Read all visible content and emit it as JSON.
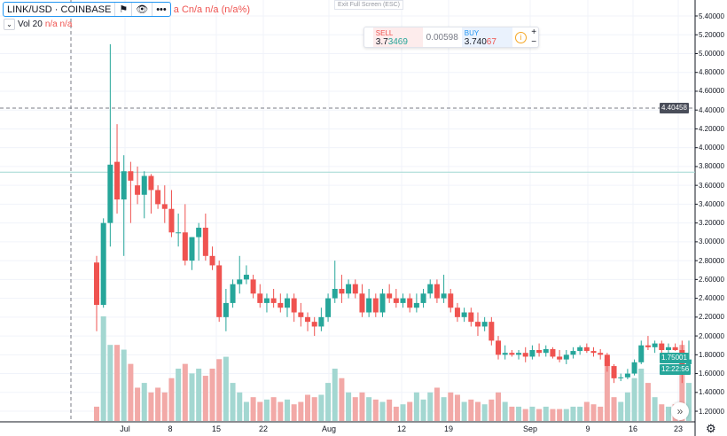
{
  "legend": {
    "symbol": "LINK/USD · COINBASE",
    "ohlc_text": "a  Cn/a  n/a (n/a%)",
    "vol_label": "Vol 20",
    "vol_values": "n/a  n/a"
  },
  "exit_fullscreen": "Exit Full Screen (ESC)",
  "trade": {
    "sell_label": "SELL",
    "sell_main": "3.7",
    "sell_tail": "3469",
    "spread": "0.00598",
    "buy_label": "BUY",
    "buy_main": "3.740",
    "buy_tail": "67",
    "plus": "+",
    "minus": "−",
    "info": "i"
  },
  "price_axis": {
    "ticks": [
      "5.40000",
      "5.20000",
      "5.00000",
      "4.80000",
      "4.60000",
      "4.40000",
      "4.20000",
      "4.00000",
      "3.80000",
      "3.60000",
      "3.40000",
      "3.20000",
      "3.00000",
      "2.80000",
      "2.60000",
      "2.40000",
      "2.20000",
      "2.00000",
      "1.80000",
      "1.60000",
      "1.40000",
      "1.20000"
    ],
    "crosshair_price": "4.40458",
    "current_price": "1.75001",
    "countdown": "12:22:56",
    "bid_line": 3.74
  },
  "time_axis": [
    "Jul",
    "8",
    "15",
    "22",
    "Aug",
    "12",
    "19",
    "Sep",
    "9",
    "16",
    "23"
  ],
  "colors": {
    "up": "#26a69a",
    "down": "#ef5350",
    "up_vol": "#a3d7d1",
    "down_vol": "#f2a9a7",
    "accent": "#2196f3"
  },
  "chart_data": {
    "type": "candlestick",
    "columns": [
      "open",
      "high",
      "low",
      "close",
      "volume"
    ],
    "candles": [
      [
        2.78,
        2.85,
        2.05,
        2.33,
        30
      ],
      [
        2.33,
        3.25,
        2.3,
        3.2,
        220
      ],
      [
        3.2,
        5.1,
        2.95,
        3.82,
        160
      ],
      [
        3.85,
        4.25,
        3.3,
        3.45,
        160
      ],
      [
        3.45,
        3.92,
        2.85,
        3.75,
        150
      ],
      [
        3.75,
        3.85,
        3.2,
        3.65,
        120
      ],
      [
        3.6,
        3.8,
        3.4,
        3.5,
        70
      ],
      [
        3.5,
        3.75,
        3.25,
        3.7,
        80
      ],
      [
        3.7,
        3.72,
        3.3,
        3.55,
        60
      ],
      [
        3.55,
        3.6,
        3.35,
        3.4,
        70
      ],
      [
        3.4,
        3.6,
        3.2,
        3.35,
        60
      ],
      [
        3.35,
        3.55,
        3.05,
        3.1,
        90
      ],
      [
        3.1,
        3.3,
        2.95,
        3.1,
        110
      ],
      [
        3.1,
        3.4,
        2.75,
        2.8,
        120
      ],
      [
        2.8,
        3.05,
        2.7,
        3.05,
        100
      ],
      [
        3.05,
        3.2,
        2.8,
        3.15,
        110
      ],
      [
        3.15,
        3.3,
        2.8,
        2.85,
        95
      ],
      [
        2.85,
        2.95,
        2.7,
        2.75,
        110
      ],
      [
        2.75,
        2.8,
        2.15,
        2.2,
        130
      ],
      [
        2.2,
        2.5,
        2.05,
        2.35,
        135
      ],
      [
        2.35,
        2.6,
        2.3,
        2.55,
        80
      ],
      [
        2.55,
        2.85,
        2.45,
        2.6,
        60
      ],
      [
        2.6,
        2.75,
        2.55,
        2.65,
        40
      ],
      [
        2.6,
        2.65,
        2.4,
        2.45,
        50
      ],
      [
        2.45,
        2.55,
        2.3,
        2.35,
        40
      ],
      [
        2.35,
        2.45,
        2.25,
        2.4,
        45
      ],
      [
        2.4,
        2.5,
        2.3,
        2.35,
        50
      ],
      [
        2.35,
        2.45,
        2.25,
        2.3,
        40
      ],
      [
        2.3,
        2.45,
        2.2,
        2.4,
        45
      ],
      [
        2.4,
        2.45,
        2.15,
        2.25,
        35
      ],
      [
        2.25,
        2.35,
        2.1,
        2.2,
        40
      ],
      [
        2.2,
        2.25,
        2.05,
        2.15,
        55
      ],
      [
        2.15,
        2.2,
        2.0,
        2.1,
        50
      ],
      [
        2.1,
        2.3,
        2.05,
        2.2,
        55
      ],
      [
        2.2,
        2.45,
        2.15,
        2.4,
        80
      ],
      [
        2.4,
        2.8,
        2.35,
        2.5,
        110
      ],
      [
        2.5,
        2.65,
        2.35,
        2.45,
        90
      ],
      [
        2.45,
        2.6,
        2.4,
        2.55,
        60
      ],
      [
        2.55,
        2.6,
        2.4,
        2.45,
        50
      ],
      [
        2.45,
        2.55,
        2.2,
        2.25,
        60
      ],
      [
        2.25,
        2.5,
        2.2,
        2.4,
        50
      ],
      [
        2.4,
        2.45,
        2.2,
        2.25,
        45
      ],
      [
        2.25,
        2.5,
        2.2,
        2.45,
        40
      ],
      [
        2.45,
        2.55,
        2.35,
        2.4,
        45
      ],
      [
        2.4,
        2.5,
        2.3,
        2.35,
        30
      ],
      [
        2.35,
        2.45,
        2.3,
        2.4,
        35
      ],
      [
        2.4,
        2.45,
        2.25,
        2.3,
        40
      ],
      [
        2.3,
        2.45,
        2.25,
        2.35,
        60
      ],
      [
        2.35,
        2.5,
        2.3,
        2.45,
        45
      ],
      [
        2.45,
        2.6,
        2.4,
        2.55,
        60
      ],
      [
        2.55,
        2.6,
        2.35,
        2.4,
        70
      ],
      [
        2.4,
        2.65,
        2.35,
        2.45,
        50
      ],
      [
        2.45,
        2.5,
        2.25,
        2.3,
        60
      ],
      [
        2.3,
        2.35,
        2.15,
        2.2,
        55
      ],
      [
        2.2,
        2.3,
        2.15,
        2.25,
        40
      ],
      [
        2.25,
        2.3,
        2.1,
        2.15,
        45
      ],
      [
        2.15,
        2.25,
        2.0,
        2.1,
        40
      ],
      [
        2.1,
        2.2,
        2.05,
        2.15,
        35
      ],
      [
        2.15,
        2.2,
        1.9,
        1.95,
        45
      ],
      [
        1.95,
        2.0,
        1.75,
        1.8,
        60
      ],
      [
        1.8,
        1.9,
        1.75,
        1.82,
        40
      ],
      [
        1.82,
        1.85,
        1.78,
        1.8,
        30
      ],
      [
        1.8,
        1.85,
        1.75,
        1.82,
        30
      ],
      [
        1.82,
        1.88,
        1.72,
        1.78,
        25
      ],
      [
        1.78,
        1.9,
        1.75,
        1.85,
        30
      ],
      [
        1.85,
        1.92,
        1.78,
        1.82,
        25
      ],
      [
        1.82,
        1.9,
        1.78,
        1.86,
        30
      ],
      [
        1.86,
        1.88,
        1.76,
        1.78,
        25
      ],
      [
        1.78,
        1.85,
        1.72,
        1.75,
        25
      ],
      [
        1.75,
        1.85,
        1.7,
        1.8,
        25
      ],
      [
        1.8,
        1.88,
        1.76,
        1.84,
        30
      ],
      [
        1.84,
        1.9,
        1.8,
        1.88,
        30
      ],
      [
        1.88,
        1.92,
        1.82,
        1.84,
        40
      ],
      [
        1.84,
        1.88,
        1.78,
        1.82,
        35
      ],
      [
        1.82,
        1.86,
        1.75,
        1.8,
        30
      ],
      [
        1.8,
        1.82,
        1.62,
        1.68,
        130
      ],
      [
        1.68,
        1.7,
        1.5,
        1.55,
        50
      ],
      [
        1.55,
        1.6,
        1.52,
        1.56,
        40
      ],
      [
        1.56,
        1.65,
        1.54,
        1.6,
        60
      ],
      [
        1.6,
        1.75,
        1.58,
        1.72,
        90
      ],
      [
        1.72,
        1.95,
        1.7,
        1.9,
        110
      ],
      [
        1.9,
        2.0,
        1.85,
        1.88,
        80
      ],
      [
        1.88,
        1.95,
        1.82,
        1.92,
        50
      ],
      [
        1.92,
        1.95,
        1.8,
        1.85,
        35
      ],
      [
        1.85,
        1.92,
        1.82,
        1.88,
        30
      ],
      [
        1.88,
        1.92,
        1.84,
        1.85,
        35
      ],
      [
        1.85,
        1.95,
        1.5,
        1.7,
        160
      ],
      [
        1.7,
        1.95,
        1.65,
        1.75,
        80
      ]
    ]
  }
}
